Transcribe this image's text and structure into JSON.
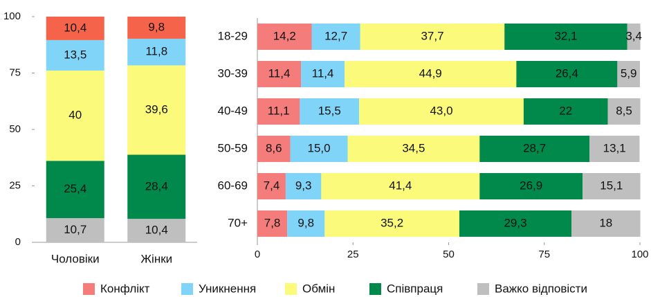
{
  "chart_data": [
    {
      "type": "bar",
      "categories": [
        "Чоловіки",
        "Жінки"
      ],
      "ylim": [
        0,
        100
      ],
      "yticks": [
        0,
        25,
        50,
        75,
        100
      ],
      "series": [
        {
          "name": "Конфлікт",
          "color": "#f5644a",
          "values": [
            10.4,
            9.8
          ],
          "value_labels": [
            "10,4",
            "9,8"
          ]
        },
        {
          "name": "Уникнення",
          "color": "#7fd4f8",
          "values": [
            13.5,
            11.8
          ],
          "value_labels": [
            "13,5",
            "11,8"
          ]
        },
        {
          "name": "Обмін",
          "color": "#fbfa7b",
          "values": [
            40,
            39.6
          ],
          "value_labels": [
            "40",
            "39,6"
          ]
        },
        {
          "name": "Співпраця",
          "color": "#00894a",
          "values": [
            25.4,
            28.4
          ],
          "value_labels": [
            "25,4",
            "28,4"
          ]
        },
        {
          "name": "Важко відповісти",
          "color": "#bfbfbf",
          "values": [
            10.7,
            10.4
          ],
          "value_labels": [
            "10,7",
            "10,4"
          ]
        }
      ]
    },
    {
      "type": "barh",
      "categories": [
        "18-29",
        "30-39",
        "40-49",
        "50-59",
        "60-69",
        "70+"
      ],
      "xlim": [
        0,
        100
      ],
      "xticks": [
        0,
        25,
        50,
        75,
        100
      ],
      "series": [
        {
          "name": "Конфлікт",
          "color": "#f47c7a",
          "values": [
            14.2,
            11.4,
            11.1,
            8.6,
            7.4,
            7.8
          ],
          "value_labels": [
            "14,2",
            "11,4",
            "11,1",
            "8,6",
            "7,4",
            "7,8"
          ]
        },
        {
          "name": "Уникнення",
          "color": "#7fd4f8",
          "values": [
            12.7,
            11.4,
            15.5,
            15.0,
            9.3,
            9.8
          ],
          "value_labels": [
            "12,7",
            "11,4",
            "15,5",
            "15,0",
            "9,3",
            "9,8"
          ]
        },
        {
          "name": "Обмін",
          "color": "#fbfa7b",
          "values": [
            37.7,
            44.9,
            43.0,
            34.5,
            41.4,
            35.2
          ],
          "value_labels": [
            "37,7",
            "44,9",
            "43,0",
            "34,5",
            "41,4",
            "35,2"
          ]
        },
        {
          "name": "Співпраця",
          "color": "#00894a",
          "values": [
            32.1,
            26.4,
            22,
            28.7,
            26.9,
            29.3
          ],
          "value_labels": [
            "32,1",
            "26,4",
            "22",
            "28,7",
            "26,9",
            "29,3"
          ]
        },
        {
          "name": "Важко відповісти",
          "color": "#bfbfbf",
          "values": [
            3.4,
            5.9,
            8.5,
            13.1,
            15.1,
            18
          ],
          "value_labels": [
            "3,4",
            "5,9",
            "8,5",
            "13,1",
            "15,1",
            "18"
          ]
        }
      ]
    }
  ]
}
